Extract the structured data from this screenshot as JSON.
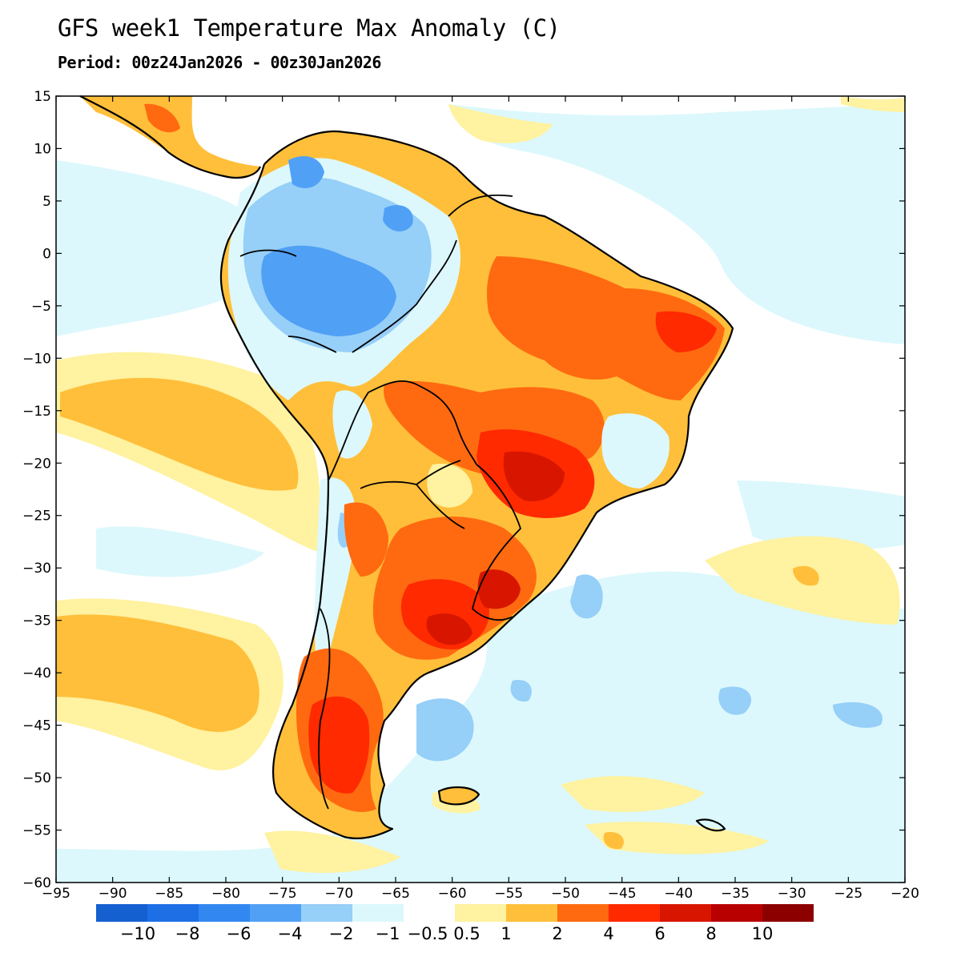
{
  "header": {
    "title": "GFS week1 Temperature Max Anomaly (C)",
    "subtitle": "Period: 00z24Jan2026 - 00z30Jan2026"
  },
  "map": {
    "lon_range": [
      -95,
      -20
    ],
    "lat_range": [
      -60,
      15
    ],
    "lon_ticks": [
      -95,
      -90,
      -85,
      -80,
      -75,
      -70,
      -65,
      -60,
      -55,
      -50,
      -45,
      -40,
      -35,
      -30,
      -25,
      -20
    ],
    "lat_ticks": [
      15,
      10,
      5,
      0,
      -5,
      -10,
      -15,
      -20,
      -25,
      -30,
      -35,
      -40,
      -45,
      -50,
      -55,
      -60
    ],
    "lon_tick_labels": [
      "−95",
      "−90",
      "−85",
      "−80",
      "−75",
      "−70",
      "−65",
      "−60",
      "−55",
      "−50",
      "−45",
      "−40",
      "−35",
      "−30",
      "−25",
      "−20"
    ],
    "lat_tick_labels": [
      "15",
      "10",
      "5",
      "0",
      "−5",
      "−10",
      "−15",
      "−20",
      "−25",
      "−30",
      "−35",
      "−40",
      "−45",
      "−50",
      "−55",
      "−60"
    ]
  },
  "colorbar": {
    "colors": [
      "#1560d0",
      "#1e6fe6",
      "#3288f0",
      "#50a0f5",
      "#96cff8",
      "#dcf8fc",
      "#ffffff",
      "#fff2a0",
      "#ffbf3a",
      "#ff6a10",
      "#ff2a00",
      "#d81600",
      "#b80000",
      "#8c0000"
    ],
    "labels": [
      "−10",
      "−8",
      "−6",
      "−4",
      "−2",
      "−1",
      "−0.5",
      "0.5",
      "1",
      "2",
      "4",
      "6",
      "8",
      "10"
    ]
  }
}
